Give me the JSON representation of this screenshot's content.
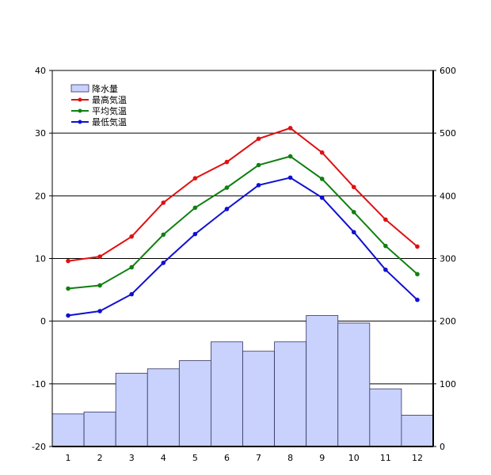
{
  "chart_data": {
    "type": "bar+line",
    "categories": [
      "1",
      "2",
      "3",
      "4",
      "5",
      "6",
      "7",
      "8",
      "9",
      "10",
      "11",
      "12"
    ],
    "left_axis": {
      "min": -20,
      "max": 40,
      "ticks": [
        -20,
        -10,
        0,
        10,
        20,
        30,
        40
      ]
    },
    "right_axis": {
      "min": 0,
      "max": 600,
      "ticks": [
        0,
        100,
        200,
        300,
        400,
        500,
        600
      ]
    },
    "bar_series": {
      "name": "降水量",
      "axis": "right",
      "color_fill": "#c8d2fc",
      "color_stroke": "#333366",
      "values": [
        52,
        55,
        117,
        124,
        137,
        167,
        152,
        167,
        209,
        197,
        92,
        50
      ]
    },
    "line_series": [
      {
        "name": "最高気温",
        "color": "#e01010",
        "axis": "left",
        "values": [
          9.6,
          10.3,
          13.5,
          18.9,
          22.8,
          25.4,
          29.1,
          30.8,
          26.9,
          21.4,
          16.2,
          11.9
        ]
      },
      {
        "name": "平均気温",
        "color": "#108010",
        "axis": "left",
        "values": [
          5.2,
          5.7,
          8.6,
          13.8,
          18.1,
          21.3,
          24.9,
          26.3,
          22.7,
          17.4,
          12.0,
          7.5
        ]
      },
      {
        "name": "最低気温",
        "color": "#1010d0",
        "axis": "left",
        "values": [
          0.9,
          1.6,
          4.3,
          9.3,
          13.9,
          17.9,
          21.7,
          22.9,
          19.7,
          14.2,
          8.2,
          3.4
        ]
      }
    ],
    "grid": true,
    "legend_position": "top-left"
  }
}
